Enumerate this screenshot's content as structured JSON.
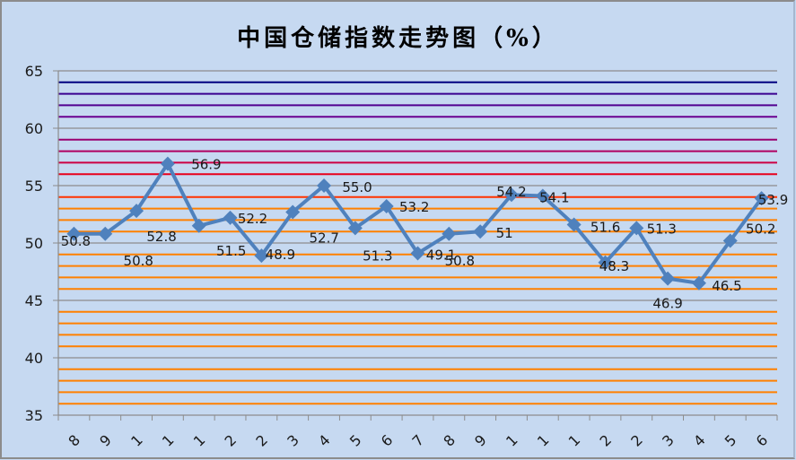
{
  "chart_data": {
    "type": "line",
    "title": "中国仓储指数走势图（%）",
    "categories": [
      "8",
      "9",
      "1",
      "1",
      "1",
      "2",
      "2",
      "3",
      "4",
      "5",
      "6",
      "7",
      "8",
      "9",
      "1",
      "1",
      "1",
      "2",
      "2",
      "3",
      "4",
      "5",
      "6"
    ],
    "series": [
      {
        "values": [
          50.8,
          50.8,
          52.8,
          56.9,
          51.5,
          52.2,
          48.9,
          52.7,
          55.0,
          51.3,
          53.2,
          49.1,
          50.8,
          51,
          54.2,
          54.1,
          51.6,
          48.3,
          51.3,
          46.9,
          46.5,
          50.2,
          53.9
        ],
        "data_labels": [
          "50.8",
          "50.8",
          "52.8",
          "56.9",
          "51.5",
          "52.2",
          "48.9",
          "52.7",
          "55.0",
          "51.3",
          "53.2",
          "49.1",
          "50.8",
          "51",
          "54.2",
          "54.1",
          "51.6",
          "48.3",
          "51.3",
          "46.9",
          "46.5",
          "50.2",
          "53.9"
        ],
        "color": "#4f81bd",
        "marker": "diamond"
      }
    ],
    "ylim": [
      35,
      65
    ],
    "yticks": [
      "35",
      "40",
      "45",
      "50",
      "55",
      "60",
      "65"
    ],
    "grid": true,
    "grid_colors": {
      "major": "#8c8c8c",
      "36-53": "#ff8000",
      "54": "#ff3300",
      "56": "#e8001c",
      "57": "#cc0044",
      "58": "#b00060",
      "59": "#990070",
      "61": "#6a0090",
      "62": "#520090",
      "63": "#3a0090",
      "64": "#000080"
    },
    "background": "#c6d9f1"
  }
}
